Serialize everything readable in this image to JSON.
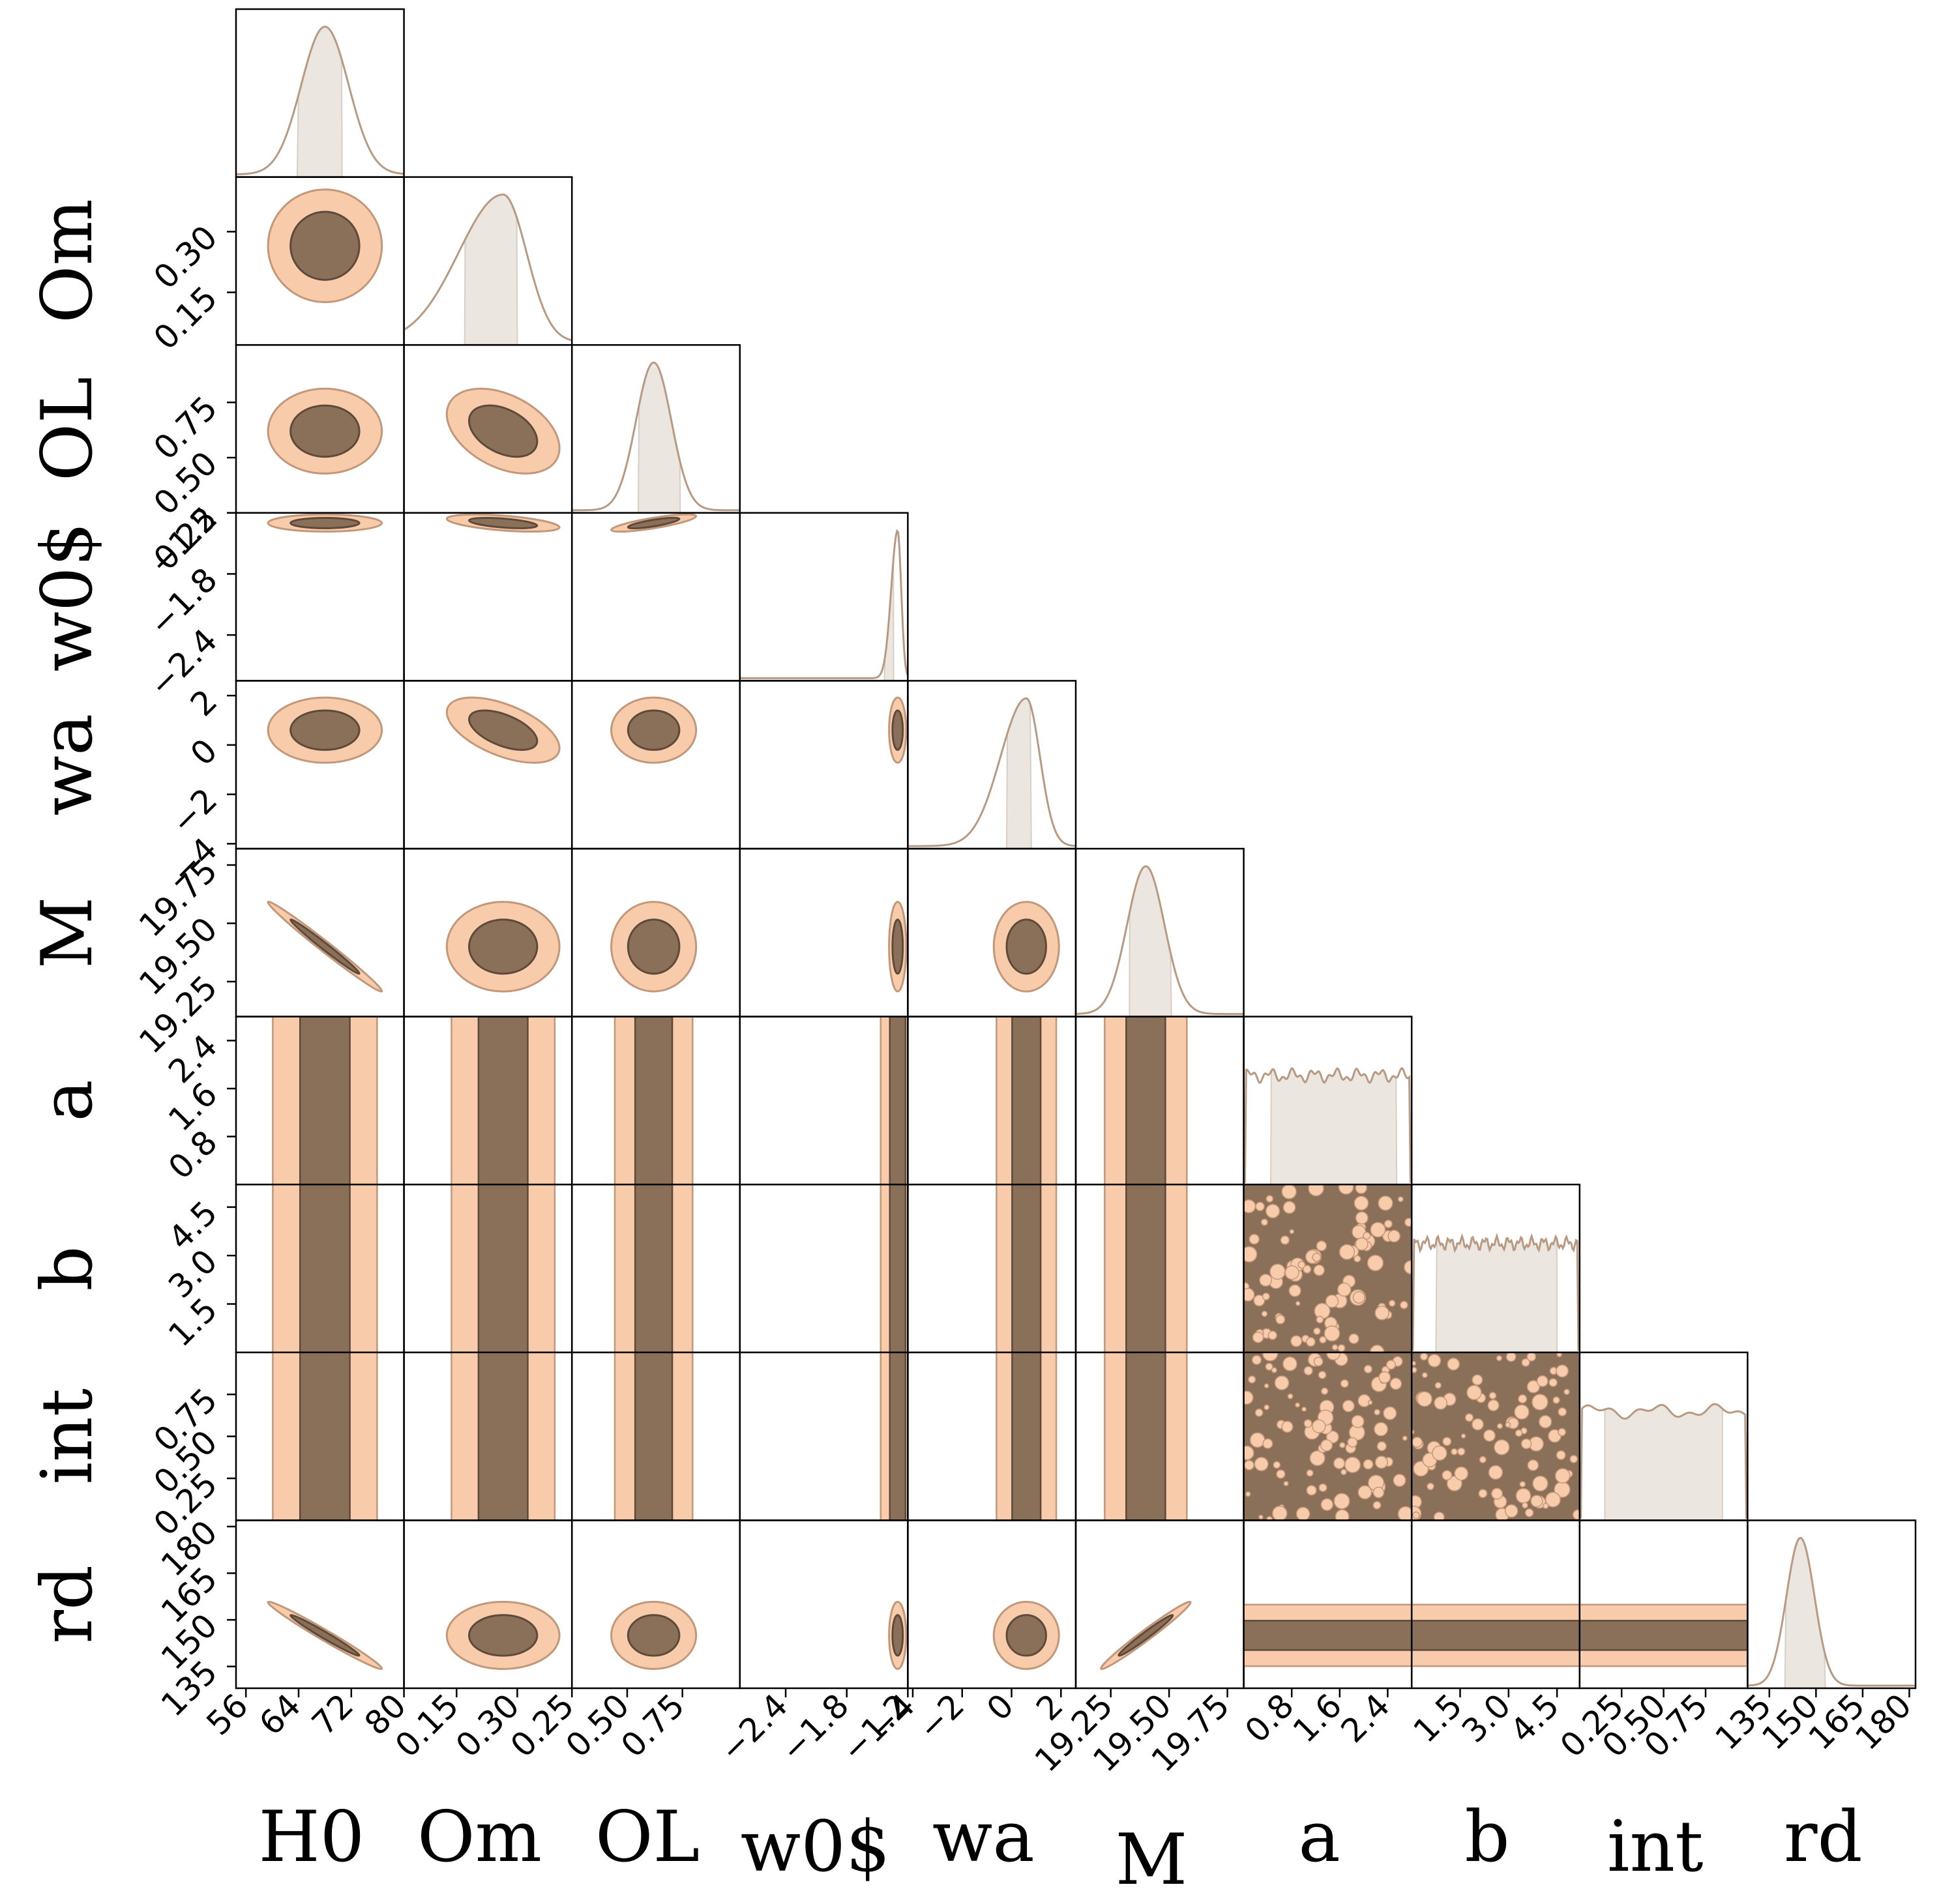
{
  "chart_data": {
    "type": "corner",
    "parameters": [
      {
        "label": "H0",
        "range": [
          54.5,
          80
        ],
        "ticks": [
          56,
          64,
          72,
          80
        ],
        "tick_labels": [
          "56",
          "64",
          "72",
          "80"
        ],
        "peak": 68,
        "sigma": 3.6,
        "ci68": [
          63.8,
          70.6
        ],
        "marginal_shape": "gaussian"
      },
      {
        "label": "Om",
        "range": [
          0.02,
          0.435
        ],
        "ticks": [
          0.15,
          0.3
        ],
        "tick_labels": [
          "0.15",
          "0.30"
        ],
        "peak": 0.265,
        "sigma": 0.058,
        "ci68": [
          0.17,
          0.3
        ],
        "marginal_shape": "skew_left"
      },
      {
        "label": "OL",
        "range": [
          0.25,
          1.01
        ],
        "ticks": [
          0.25,
          0.5,
          0.75
        ],
        "tick_labels": [
          "0.25",
          "0.50",
          "0.75"
        ],
        "peak": 0.62,
        "sigma": 0.08,
        "ci68": [
          0.55,
          0.74
        ],
        "marginal_shape": "gaussian"
      },
      {
        "label": "w0$",
        "range": [
          -2.85,
          -1.2
        ],
        "ticks": [
          -2.4,
          -1.8,
          -1.2
        ],
        "tick_labels": [
          "−2.4",
          "−1.8",
          "−1.2"
        ],
        "peak": -1.3,
        "sigma": 0.035,
        "ci68": [
          -1.43,
          -1.34
        ],
        "marginal_shape": "narrow"
      },
      {
        "label": "wa",
        "range": [
          -4.2,
          2.6
        ],
        "ticks": [
          -4,
          -2,
          0,
          2
        ],
        "tick_labels": [
          "−4",
          "−2",
          "0",
          "2"
        ],
        "peak": 0.6,
        "sigma": 0.55,
        "ci68": [
          -0.2,
          0.8
        ],
        "marginal_shape": "skew_left"
      },
      {
        "label": "M",
        "range": [
          19.1,
          19.82
        ],
        "ticks": [
          19.25,
          19.5,
          19.75
        ],
        "tick_labels": [
          "19.25",
          "19.50",
          "19.75"
        ],
        "peak": 19.4,
        "sigma": 0.08,
        "ci68": [
          19.33,
          19.51
        ],
        "marginal_shape": "gaussian"
      },
      {
        "label": "a",
        "range": [
          0,
          2.8
        ],
        "ticks": [
          0.8,
          1.6,
          2.4
        ],
        "tick_labels": [
          "0.8",
          "1.6",
          "2.4"
        ],
        "peak": 1.4,
        "sigma": null,
        "ci68": [
          0.45,
          2.55
        ],
        "marginal_shape": "uniform"
      },
      {
        "label": "b",
        "range": [
          0,
          5.2
        ],
        "ticks": [
          1.5,
          3.0,
          4.5
        ],
        "tick_labels": [
          "1.5",
          "3.0",
          "4.5"
        ],
        "peak": 2.6,
        "sigma": null,
        "ci68": [
          0.75,
          4.5
        ],
        "marginal_shape": "uniform"
      },
      {
        "label": "int",
        "range": [
          0,
          1.0
        ],
        "ticks": [
          0.25,
          0.5,
          0.75
        ],
        "tick_labels": [
          "0.25",
          "0.50",
          "0.75"
        ],
        "peak": 0.5,
        "sigma": null,
        "ci68": [
          0.15,
          0.85
        ],
        "marginal_shape": "uniform"
      },
      {
        "label": "rd",
        "range": [
          128,
          182
        ],
        "ticks": [
          135,
          150,
          165,
          180
        ],
        "tick_labels": [
          "135",
          "150",
          "165",
          "180"
        ],
        "peak": 145,
        "sigma": 4.5,
        "ci68": [
          140,
          153
        ],
        "marginal_shape": "gaussian"
      }
    ],
    "correlations": [
      {
        "x": "H0",
        "y": "M",
        "rho": -0.995
      },
      {
        "x": "H0",
        "y": "rd",
        "rho": -0.985
      },
      {
        "x": "M",
        "y": "rd",
        "rho": 0.985
      },
      {
        "x": "Om",
        "y": "OL",
        "rho": -0.4
      },
      {
        "x": "Om",
        "y": "w0$",
        "rho": -0.5
      },
      {
        "x": "OL",
        "y": "w0$",
        "rho": 0.8
      },
      {
        "x": "Om",
        "y": "wa",
        "rho": -0.55
      }
    ],
    "legend": null,
    "title": "",
    "grid": false,
    "colors": {
      "contour_1sigma_fill": "#8b7059",
      "contour_2sigma_fill": "#f8ccaa",
      "contour_edge": "#c2977a",
      "marginal_line": "#b89a83",
      "marginal_band": "#ece6e0",
      "frame": "#000000"
    }
  }
}
